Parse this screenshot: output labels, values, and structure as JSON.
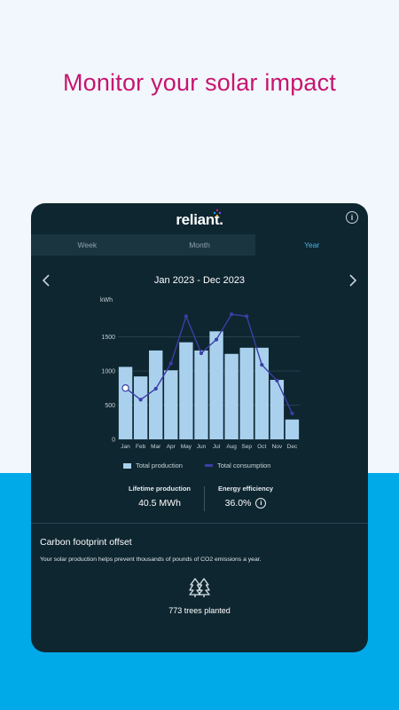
{
  "headline": "Monitor your solar impact",
  "brand": {
    "name": "reliant."
  },
  "tabs": [
    {
      "label": "Week",
      "active": false
    },
    {
      "label": "Month",
      "active": false
    },
    {
      "label": "Year",
      "active": true
    }
  ],
  "date_range": "Jan 2023 - Dec 2023",
  "colors": {
    "headline": "#c8146e",
    "card_bg": "#0e2630",
    "production_bar": "#a9d1ee",
    "consumption_line": "#3b3ea6",
    "active_tab": "#4eb2e6",
    "bottom_band": "#00a9e8"
  },
  "chart_data": {
    "type": "bar",
    "ylabel": "kWh",
    "ylim": [
      0,
      2000
    ],
    "yticks": [
      0,
      500,
      1000,
      1500
    ],
    "categories": [
      "Jan",
      "Feb",
      "Mar",
      "Apr",
      "May",
      "Jun",
      "Jul",
      "Aug",
      "Sep",
      "Oct",
      "Nov",
      "Dec"
    ],
    "series": [
      {
        "name": "Total production",
        "kind": "bar",
        "values": [
          1060,
          920,
          1300,
          1010,
          1420,
          1300,
          1580,
          1250,
          1340,
          1340,
          870,
          290
        ]
      },
      {
        "name": "Total consumption",
        "kind": "line",
        "values": [
          750,
          580,
          740,
          1110,
          1800,
          1260,
          1460,
          1830,
          1800,
          1090,
          860,
          380
        ]
      }
    ],
    "legend_position": "bottom",
    "grid": true
  },
  "stats": {
    "lifetime_production_label": "Lifetime production",
    "lifetime_production_value": "40.5 MWh",
    "energy_efficiency_label": "Energy efficiency",
    "energy_efficiency_value": "36.0%"
  },
  "carbon": {
    "title": "Carbon footprint offset",
    "description": "Your solar production helps prevent thousands of pounds of CO2 emissions a year.",
    "trees_label": "773 trees planted"
  }
}
